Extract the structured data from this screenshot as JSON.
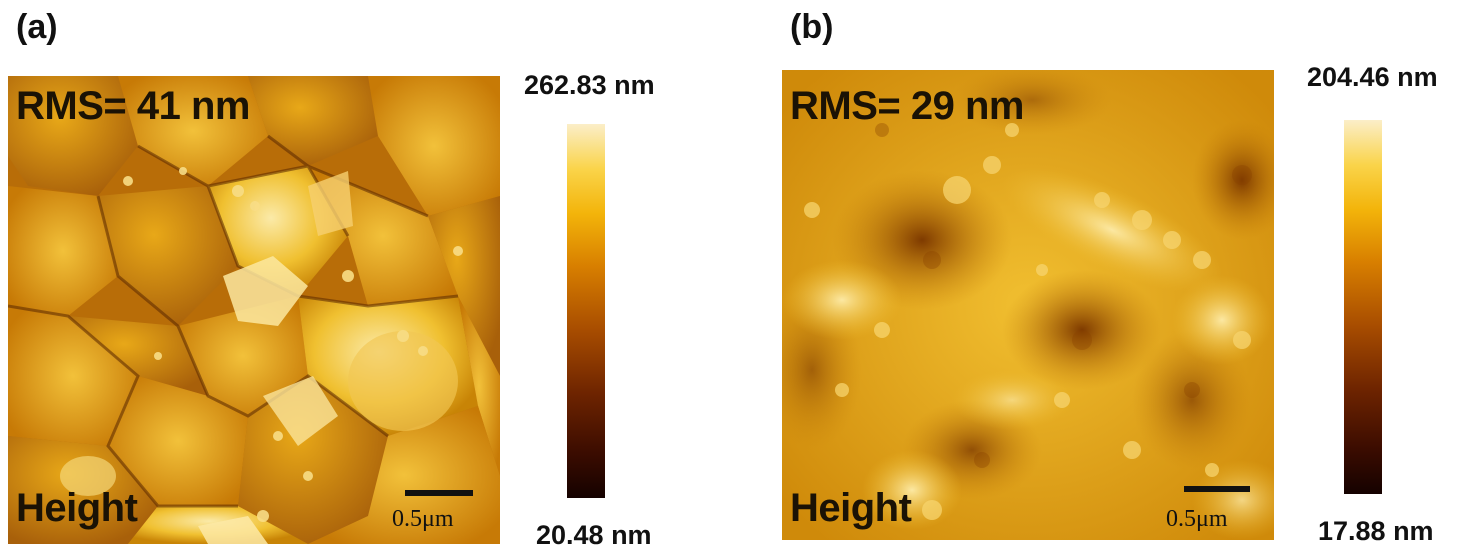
{
  "panels": [
    {
      "label": "(a)",
      "rms": "RMS= 41 nm",
      "channel": "Height",
      "scale_bar": "0.5μm",
      "colorbar_max": "262.83  nm",
      "colorbar_min": "20.48  nm"
    },
    {
      "label": "(b)",
      "rms": "RMS= 29 nm",
      "channel": "Height",
      "scale_bar": "0.5μm",
      "colorbar_max": "204.46  nm",
      "colorbar_min": "17.88 nm"
    }
  ],
  "colors": {
    "afm_dark": "#4a1a00",
    "afm_mid": "#c87a08",
    "afm_bright": "#f6d66a",
    "colorbar_top": "#fbeec8",
    "colorbar_bottom": "#150200"
  }
}
